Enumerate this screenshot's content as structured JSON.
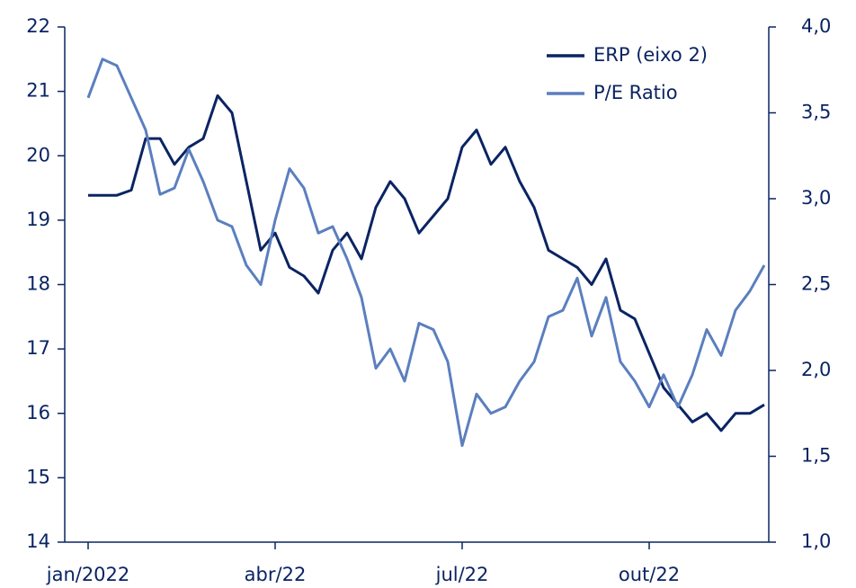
{
  "chart_data": {
    "type": "line",
    "categories": [
      "jan/2022",
      null,
      null,
      null,
      null,
      null,
      null,
      null,
      null,
      null,
      null,
      null,
      null,
      "abr/22",
      null,
      null,
      null,
      null,
      null,
      null,
      null,
      null,
      null,
      null,
      null,
      null,
      "jul/22",
      null,
      null,
      null,
      null,
      null,
      null,
      null,
      null,
      null,
      null,
      null,
      null,
      "out/22",
      null,
      null,
      null,
      null,
      null,
      null,
      null,
      null
    ],
    "series": [
      {
        "name": "ERP (eixo 2)",
        "color": "#0a2463",
        "axis": "y2",
        "values": [
          3.02,
          3.02,
          3.02,
          3.05,
          3.35,
          3.35,
          3.2,
          3.3,
          3.35,
          3.6,
          3.5,
          3.1,
          2.7,
          2.8,
          2.6,
          2.55,
          2.45,
          2.7,
          2.8,
          2.65,
          2.95,
          3.1,
          3.0,
          2.8,
          2.9,
          3.0,
          3.3,
          3.4,
          3.2,
          3.3,
          3.1,
          2.95,
          2.7,
          2.65,
          2.6,
          2.5,
          2.65,
          2.35,
          2.3,
          2.1,
          1.9,
          1.8,
          1.7,
          1.75,
          1.65,
          1.75,
          1.75,
          1.8
        ]
      },
      {
        "name": "P/E Ratio",
        "color": "#5b7fbf",
        "values": [
          20.9,
          21.5,
          21.4,
          20.9,
          20.4,
          19.4,
          19.5,
          20.1,
          19.6,
          19.0,
          18.9,
          18.3,
          18.0,
          19.0,
          19.8,
          19.5,
          18.8,
          18.9,
          18.4,
          17.8,
          16.7,
          17.0,
          16.5,
          17.4,
          17.3,
          16.8,
          15.5,
          16.3,
          16.0,
          16.1,
          16.5,
          16.8,
          17.5,
          17.6,
          18.1,
          17.2,
          17.8,
          16.8,
          16.5,
          16.1,
          16.6,
          16.1,
          16.6,
          17.3,
          16.9,
          17.6,
          17.9,
          18.3
        ]
      }
    ],
    "ylim": [
      14,
      22
    ],
    "yticks": [
      14,
      15,
      16,
      17,
      18,
      19,
      20,
      21,
      22
    ],
    "y2lim": [
      1.0,
      4.0
    ],
    "y2ticks": [
      {
        "value": 1.0,
        "label": "1,0"
      },
      {
        "value": 1.5,
        "label": "1,5"
      },
      {
        "value": 2.0,
        "label": "2,0"
      },
      {
        "value": 2.5,
        "label": "2,5"
      },
      {
        "value": 3.0,
        "label": "3,0"
      },
      {
        "value": 3.5,
        "label": "3,5"
      },
      {
        "value": 4.0,
        "label": "4,0"
      }
    ],
    "legend": "top-right",
    "grid": false
  }
}
